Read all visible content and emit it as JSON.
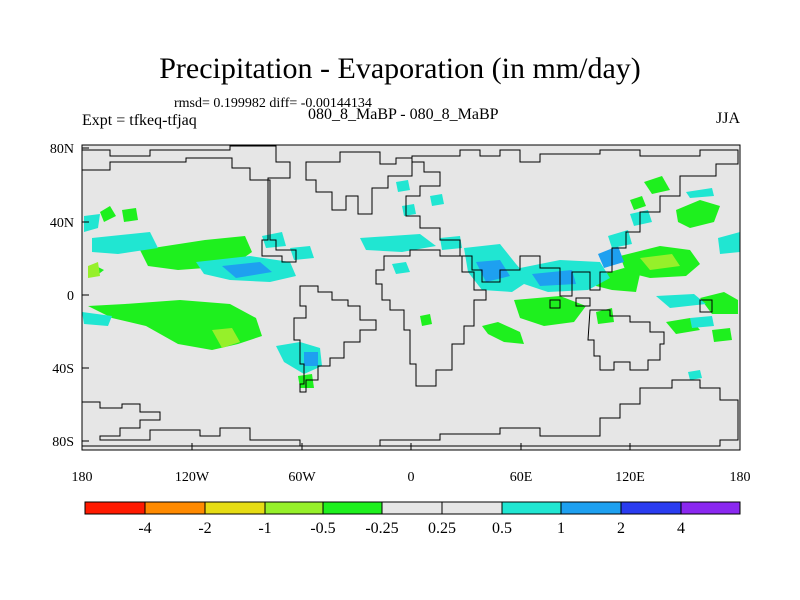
{
  "title": "Precipitation - Evaporation (in mm/day)",
  "stats_line": "rmsd= 0.199982 diff= -0.00144134",
  "expt_label": "Expt = tfkeq-tfjaq",
  "center_label": "080_8_MaBP - 080_8_MaBP",
  "season_label": "JJA",
  "map": {
    "lon_ticks": [
      "180",
      "120W",
      "60W",
      "0",
      "60E",
      "120E",
      "180"
    ],
    "lat_ticks": [
      "80N",
      "40N",
      "0",
      "40S",
      "80S"
    ],
    "background_color": "#e6e6e6"
  },
  "colorbar": {
    "labels": [
      "-4",
      "-2",
      "-1",
      "-0.5",
      "-0.25",
      "0.25",
      "0.5",
      "1",
      "2",
      "4"
    ],
    "colors": [
      "#ff1a00",
      "#ff8a00",
      "#e6dc14",
      "#96f02a",
      "#1ef01e",
      "#e6e6e6",
      "#20e6d2",
      "#1ea0f0",
      "#2a3cf0",
      "#8a28f0"
    ]
  }
}
